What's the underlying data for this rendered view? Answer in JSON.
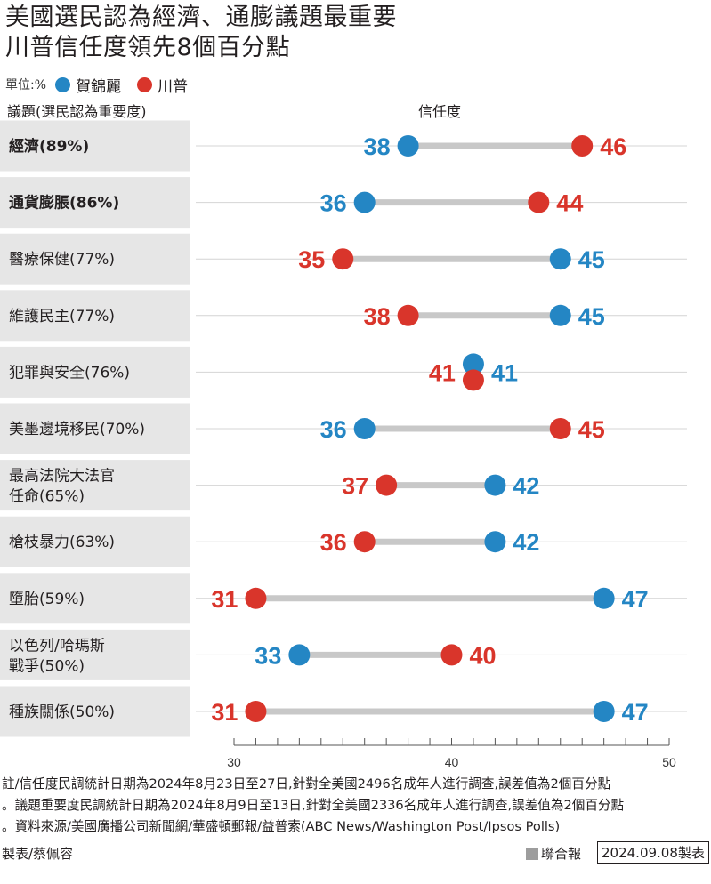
{
  "title_lines": [
    "美國選民認為經濟、通膨議題最重要",
    "川普信任度領先8個百分點"
  ],
  "unit": "單位:%",
  "left_header": "議題(選民認為重要度)",
  "mid_header": "信任度",
  "colors": {
    "harris": "#2486c4",
    "trump": "#d9352b",
    "connector": "#c8c8c8",
    "row_bg": "#e6e6e6"
  },
  "chart_data": {
    "type": "dumbbell",
    "xlim": [
      30,
      50
    ],
    "x_ticks": [
      30,
      40,
      50
    ],
    "series": [
      {
        "name": "賀錦麗",
        "values": [
          38,
          36,
          45,
          45,
          41,
          36,
          42,
          42,
          47,
          33,
          47
        ]
      },
      {
        "name": "川普",
        "values": [
          46,
          44,
          35,
          38,
          41,
          45,
          37,
          36,
          31,
          40,
          31
        ]
      }
    ],
    "categories": [
      {
        "lines": [
          "經濟(89%)"
        ],
        "bold": true
      },
      {
        "lines": [
          "通貨膨脹(86%)"
        ],
        "bold": true
      },
      {
        "lines": [
          "醫療保健(77%)"
        ],
        "bold": false
      },
      {
        "lines": [
          "維護民主(77%)"
        ],
        "bold": false
      },
      {
        "lines": [
          "犯罪與安全(76%)"
        ],
        "bold": false
      },
      {
        "lines": [
          "美墨邊境移民(70%)"
        ],
        "bold": false
      },
      {
        "lines": [
          "最高法院大法官",
          "任命(65%)"
        ],
        "bold": false
      },
      {
        "lines": [
          "槍枝暴力(63%)"
        ],
        "bold": false
      },
      {
        "lines": [
          "墮胎(59%)"
        ],
        "bold": false
      },
      {
        "lines": [
          "以色列/哈瑪斯",
          "戰爭(50%)"
        ],
        "bold": false
      },
      {
        "lines": [
          "種族關係(50%)"
        ],
        "bold": false
      }
    ]
  },
  "notes": [
    "註/信任度民調統計日期為2024年8月23日至27日,針對全美國2496名成年人進行調查,誤差值為2個百分點",
    "。議題重要度民調統計日期為2024年8月9日至13日,針對全美國2336名成年人進行調查,誤差值為2個百分點",
    "。資料來源/美國廣播公司新聞網/華盛頓郵報/益普索(ABC News/Washington Post/Ipsos Polls)"
  ],
  "credit": "製表/蔡佩容",
  "publisher": "聯合報",
  "date_stamp": "2024.09.08製表"
}
